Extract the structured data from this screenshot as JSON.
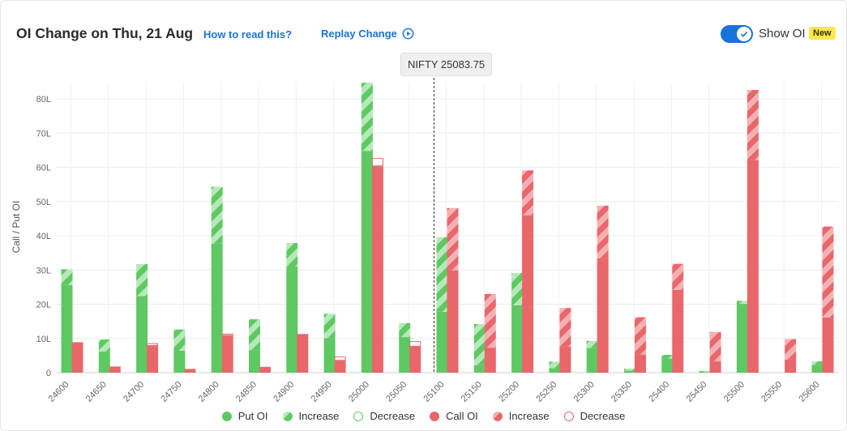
{
  "header": {
    "title": "OI Change on Thu, 21 Aug",
    "how_to_read": "How to read this?",
    "replay": "Replay Change",
    "show_oi": "Show OI",
    "new_badge": "New"
  },
  "spot_label": "NIFTY 25083.75",
  "legend": {
    "put_oi": "Put OI",
    "put_increase": "Increase",
    "put_decrease": "Decrease",
    "call_oi": "Call OI",
    "call_increase": "Increase",
    "call_decrease": "Decrease"
  },
  "colors": {
    "put": "#5ec962",
    "put_light": "#a8e3aa",
    "call": "#e9666a",
    "call_light": "#f3a9ab",
    "accent": "#1a73d9"
  },
  "chart_data": {
    "type": "bar",
    "ylabel": "Call / Put OI",
    "ylim": [
      0,
      85
    ],
    "yticks": [
      "0",
      "10L",
      "20L",
      "30L",
      "40L",
      "50L",
      "60L",
      "70L",
      "80L"
    ],
    "ytick_values": [
      0,
      10,
      20,
      30,
      40,
      50,
      60,
      70,
      80
    ],
    "grid": true,
    "legend_position": "bottom",
    "spot_strike": 25083.75,
    "categories": [
      "24600",
      "24650",
      "24700",
      "24750",
      "24800",
      "24850",
      "24900",
      "24950",
      "25000",
      "25050",
      "25100",
      "25150",
      "25200",
      "25250",
      "25300",
      "25350",
      "25400",
      "25450",
      "25500",
      "25550",
      "25600"
    ],
    "series": [
      {
        "name": "Put OI",
        "current": [
          30.2,
          9.7,
          31.7,
          12.6,
          54.3,
          15.6,
          37.9,
          17.2,
          84.7,
          14.5,
          39.6,
          14.2,
          29.1,
          3.2,
          9.3,
          1.2,
          5.2,
          0.5,
          21.0,
          0,
          3.3
        ],
        "previous": [
          25.6,
          6.2,
          22.4,
          6.4,
          37.7,
          6.6,
          31.0,
          10.1,
          64.8,
          10.4,
          17.8,
          2.2,
          19.7,
          1.3,
          7.2,
          0.6,
          4.1,
          0.2,
          20.1,
          0,
          2.3
        ]
      },
      {
        "name": "Call OI",
        "current": [
          8.9,
          1.8,
          7.8,
          1.1,
          10.8,
          1.7,
          11.3,
          3.5,
          60.3,
          7.6,
          48.1,
          23.0,
          59.1,
          18.9,
          48.8,
          16.2,
          31.8,
          11.9,
          82.6,
          9.8,
          42.7
        ],
        "previous": [
          8.9,
          1.8,
          8.6,
          1.1,
          11.4,
          1.7,
          11.3,
          4.7,
          62.7,
          9.2,
          29.9,
          7.3,
          46.0,
          7.6,
          33.4,
          5.3,
          24.2,
          3.3,
          62.1,
          3.8,
          16.1
        ]
      }
    ]
  }
}
